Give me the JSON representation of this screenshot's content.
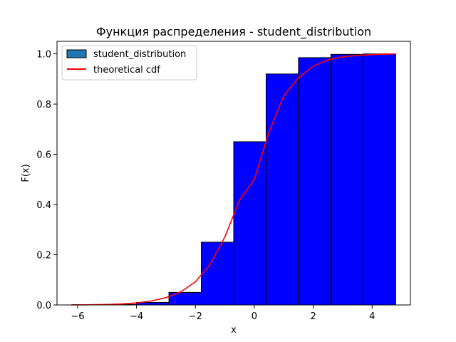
{
  "chart_data": {
    "type": "bar",
    "title": "Функция распределения - student_distribution",
    "xlabel": "x",
    "ylabel": "F(x)",
    "xlim": [
      -6.7,
      5.3
    ],
    "ylim": [
      0.0,
      1.05
    ],
    "xticks": [
      -6,
      -4,
      -2,
      0,
      2,
      4
    ],
    "xtick_labels": [
      "−6",
      "−4",
      "−2",
      "0",
      "2",
      "4"
    ],
    "yticks": [
      0.0,
      0.2,
      0.4,
      0.6,
      0.8,
      1.0
    ],
    "ytick_labels": [
      "0.0",
      "0.2",
      "0.4",
      "0.6",
      "0.8",
      "1.0"
    ],
    "grid": false,
    "legend_position": "upper-left",
    "histogram": {
      "name": "student_distribution",
      "legend_color": "#1f77b4",
      "fill_color": "#0000ff",
      "edge_color": "#000000",
      "bin_edges": [
        -6.2,
        -5.1,
        -4.0,
        -2.9,
        -1.8,
        -0.7,
        0.4,
        1.5,
        2.6,
        3.7,
        4.8
      ],
      "values": [
        0.001,
        0.002,
        0.01,
        0.05,
        0.25,
        0.65,
        0.92,
        0.985,
        0.998,
        1.0
      ]
    },
    "line": {
      "name": "theoretical cdf",
      "color": "#ff0000",
      "x": [
        -6.2,
        -5.5,
        -5.0,
        -4.5,
        -4.0,
        -3.5,
        -3.0,
        -2.5,
        -2.0,
        -1.5,
        -1.0,
        -0.5,
        0.0,
        0.5,
        1.0,
        1.5,
        2.0,
        2.5,
        3.0,
        3.5,
        4.0,
        4.5,
        4.8
      ],
      "y": [
        0.0,
        0.001,
        0.002,
        0.004,
        0.008,
        0.016,
        0.029,
        0.052,
        0.092,
        0.161,
        0.271,
        0.417,
        0.5,
        0.689,
        0.833,
        0.905,
        0.951,
        0.976,
        0.988,
        0.994,
        0.997,
        0.999,
        1.0
      ]
    }
  }
}
